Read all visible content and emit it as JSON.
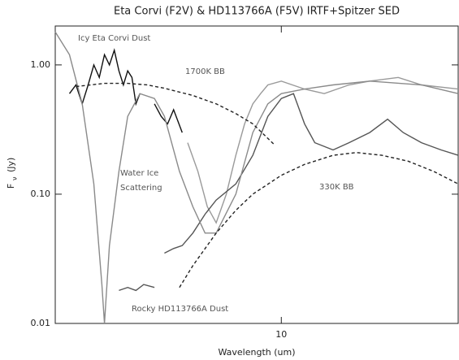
{
  "chart_data": {
    "type": "line",
    "title": "Eta Corvi (F2V) & HD113766A (F5V) IRTF+Spitzer SED",
    "x_label": "Wavelength (um)",
    "y_label": {
      "symbol": "F",
      "subscript": "ν",
      "unit": "(Jy)"
    },
    "xlog": true,
    "ylog": true,
    "xlim": [
      1.7,
      40
    ],
    "ylim": [
      0.01,
      2.0
    ],
    "xticks": [
      10
    ],
    "yticks": [
      0.01,
      {
        "value": 0.1,
        "label": "0.10"
      },
      {
        "value": 1,
        "label": "1.00"
      }
    ],
    "annotations": [
      "Icy Eta Corvi Dust",
      "1700K BB",
      "Water Ice",
      "Scattering",
      "330K BB",
      "Rocky HD113766A Dust"
    ],
    "series": [
      {
        "color": "#111111",
        "dash": false,
        "x": [
          1.9,
          2.0,
          2.1,
          2.2,
          2.3,
          2.4,
          2.5,
          2.6,
          2.7,
          2.8,
          2.9,
          3.0,
          3.1,
          3.2,
          3.3,
          3.5,
          3.7,
          3.9,
          4.1,
          4.3,
          4.6
        ],
        "values": [
          0.6,
          0.7,
          0.5,
          0.7,
          1.0,
          0.8,
          1.2,
          1.0,
          1.3,
          0.9,
          0.7,
          0.9,
          0.8,
          0.5,
          0.6,
          null,
          0.5,
          0.4,
          0.35,
          0.45,
          0.3
        ]
      },
      {
        "color": "#9a9a9a",
        "dash": false,
        "x": [
          4.8,
          5.2,
          5.6,
          6.0,
          6.5,
          7,
          7.5,
          8,
          8.5,
          9,
          10,
          12,
          14,
          17,
          20,
          25,
          30,
          40
        ],
        "values": [
          0.25,
          0.15,
          0.08,
          0.06,
          0.1,
          0.2,
          0.35,
          0.5,
          0.6,
          0.7,
          0.75,
          0.65,
          0.6,
          0.7,
          0.75,
          0.8,
          0.7,
          0.65
        ]
      },
      {
        "color": "#555555",
        "dash": false,
        "x": [
          2.8,
          3.0,
          3.2,
          3.4,
          3.7,
          3.8,
          4.0,
          4.3,
          4.6,
          5,
          5.5,
          6,
          7,
          8,
          9,
          10,
          11,
          12,
          13,
          15,
          17,
          20,
          23,
          26,
          30,
          35,
          40
        ],
        "values": [
          0.018,
          0.019,
          0.018,
          0.02,
          0.019,
          null,
          0.035,
          0.038,
          0.04,
          0.05,
          0.07,
          0.09,
          0.12,
          0.2,
          0.4,
          0.55,
          0.6,
          0.35,
          0.25,
          0.22,
          0.25,
          0.3,
          0.38,
          0.3,
          0.25,
          0.22,
          0.2
        ]
      },
      {
        "color": "#8a8a8a",
        "dash": false,
        "x": [
          1.7,
          1.9,
          2.1,
          2.3,
          2.45,
          2.5,
          2.6,
          2.8,
          3.0,
          3.3,
          3.7,
          4.0,
          4.5,
          5,
          5.5,
          6,
          7,
          8,
          9,
          10,
          12,
          15,
          20,
          30,
          40
        ],
        "values": [
          1.8,
          1.2,
          0.5,
          0.12,
          0.02,
          0.01,
          0.04,
          0.15,
          0.4,
          0.6,
          0.55,
          0.4,
          0.15,
          0.08,
          0.05,
          0.05,
          0.1,
          0.3,
          0.5,
          0.6,
          0.65,
          0.7,
          0.75,
          0.7,
          0.6
        ]
      },
      {
        "color": "#222222",
        "dash": true,
        "x": [
          2,
          2.5,
          3,
          3.5,
          4,
          5,
          6,
          7,
          8,
          9.5
        ],
        "values": [
          0.68,
          0.72,
          0.72,
          0.7,
          0.66,
          0.58,
          0.5,
          0.42,
          0.35,
          0.24
        ]
      },
      {
        "color": "#222222",
        "dash": true,
        "x": [
          4.5,
          5,
          6,
          7,
          8,
          10,
          12,
          15,
          18,
          22,
          27,
          33,
          40
        ],
        "values": [
          0.019,
          0.028,
          0.05,
          0.075,
          0.1,
          0.14,
          0.17,
          0.2,
          0.21,
          0.2,
          0.18,
          0.15,
          0.12
        ]
      }
    ]
  }
}
